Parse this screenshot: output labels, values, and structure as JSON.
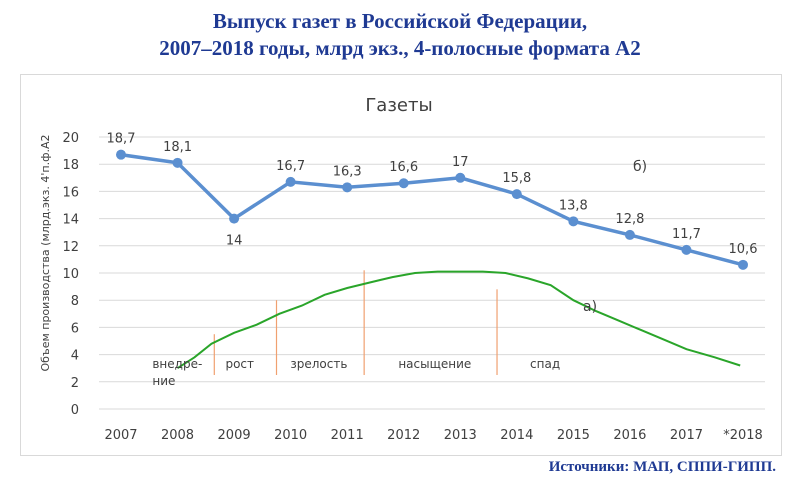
{
  "header": {
    "title_line1": "Выпуск газет в Российской Федерации,",
    "title_line2": "2007–2018 годы, млрд экз., 4-полосные формата А2",
    "source": "Источники: МАП, СППИ-ГИПП."
  },
  "colors": {
    "main_series": "#5b8fd0",
    "curve": "#2aa52a",
    "stage_divider": "#f0a070",
    "grid": "#d9d9d9"
  },
  "chart_data": {
    "type": "line",
    "title": "Газеты",
    "ylabel": "Объем производства (млрд.экз. 4'п.ф.А2",
    "xlabel": "",
    "ylim": [
      0,
      20
    ],
    "yticks": [
      "0",
      "2",
      "4",
      "6",
      "8",
      "10",
      "12",
      "14",
      "16",
      "18",
      "20"
    ],
    "categories": [
      "2007",
      "2008",
      "2009",
      "2010",
      "2011",
      "2012",
      "2013",
      "2014",
      "2015",
      "2016",
      "2017",
      "*2018"
    ],
    "series": [
      {
        "values": [
          18.7,
          18.1,
          14,
          16.7,
          16.3,
          16.6,
          17,
          15.8,
          13.8,
          12.8,
          11.7,
          10.6
        ],
        "labels": [
          "18,7",
          "18,1",
          "14",
          "16,7",
          "16,3",
          "16,6",
          "17",
          "15,8",
          "13,8",
          "12,8",
          "11,7",
          "10,6"
        ]
      },
      {
        "x": [
          1.0,
          1.3,
          1.6,
          2.0,
          2.4,
          2.8,
          3.2,
          3.6,
          4.0,
          4.4,
          4.8,
          5.2,
          5.6,
          6.0,
          6.4,
          6.8,
          7.2,
          7.6,
          8.0,
          8.4,
          8.8,
          9.2,
          9.6,
          10.0,
          10.5,
          10.95
        ],
        "values": [
          3.0,
          3.8,
          4.8,
          5.6,
          6.2,
          7.0,
          7.6,
          8.4,
          8.9,
          9.3,
          9.7,
          10.0,
          10.1,
          10.1,
          10.1,
          10.0,
          9.6,
          9.1,
          8.0,
          7.2,
          6.5,
          5.8,
          5.1,
          4.4,
          3.8,
          3.2
        ]
      }
    ],
    "annotations": {
      "curve_label": "а)",
      "series_label": "б)"
    },
    "stages": [
      {
        "line1": "внедре-",
        "line2": "ние"
      },
      {
        "line1": "рост"
      },
      {
        "line1": "зрелость"
      },
      {
        "line1": "насыщение"
      },
      {
        "line1": "спад"
      }
    ]
  }
}
